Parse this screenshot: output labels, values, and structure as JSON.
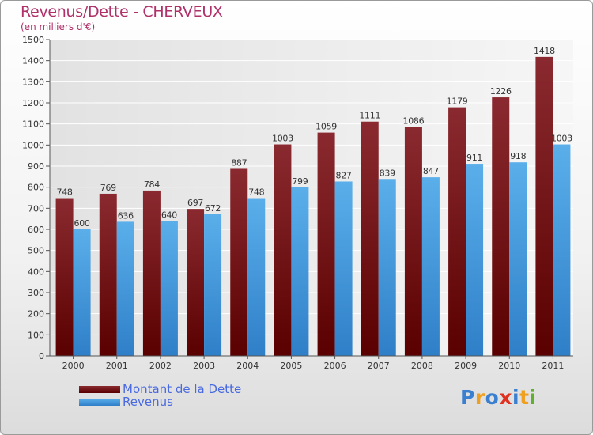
{
  "title": "Revenus/Dette - CHERVEUX",
  "subtitle": "(en milliers d'€)",
  "logo": {
    "text": "Proxiti",
    "letters": [
      "P",
      "r",
      "o",
      "x",
      "i",
      "t",
      "i"
    ],
    "colors": [
      "#3a7fd0",
      "#f0a020",
      "#3a7fd0",
      "#e03020",
      "#3a7fd0",
      "#f0a020",
      "#60b030"
    ]
  },
  "colors": {
    "dette_top": "#8a2a30",
    "dette_bottom": "#5a0000",
    "revenus_top": "#5aafea",
    "revenus_bottom": "#2f7fc8",
    "title": "#b0306a",
    "legend_text": "#4a6ae0"
  },
  "chart_data": {
    "type": "bar",
    "title": "Revenus/Dette - CHERVEUX",
    "subtitle": "(en milliers d'€)",
    "categories": [
      "2000",
      "2001",
      "2002",
      "2003",
      "2004",
      "2005",
      "2006",
      "2007",
      "2008",
      "2009",
      "2010",
      "2011"
    ],
    "series": [
      {
        "name": "Montant de la Dette",
        "values": [
          748,
          769,
          784,
          697,
          887,
          1003,
          1059,
          1111,
          1086,
          1179,
          1226,
          1418
        ]
      },
      {
        "name": "Revenus",
        "values": [
          600,
          636,
          640,
          672,
          748,
          799,
          827,
          839,
          847,
          911,
          918,
          1003
        ]
      }
    ],
    "ylim": [
      0,
      1500
    ],
    "yticks": [
      0,
      100,
      200,
      300,
      400,
      500,
      600,
      700,
      800,
      900,
      1000,
      1100,
      1200,
      1300,
      1400,
      1500
    ],
    "grid": true,
    "legend_position": "bottom-left"
  }
}
